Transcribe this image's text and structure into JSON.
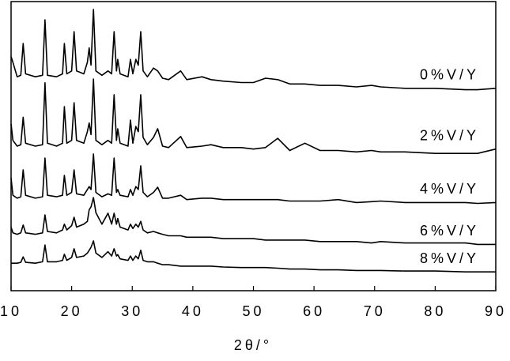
{
  "chart_data": {
    "type": "line",
    "x_label": "2θ/°",
    "x": [
      10,
      10.3,
      11,
      11.6,
      12,
      12.4,
      14,
      15.2,
      15.6,
      16,
      17.5,
      18.5,
      18.8,
      19.2,
      20,
      20.4,
      20.8,
      22,
      22.6,
      22.9,
      23.2,
      23.6,
      24,
      25,
      26,
      26.6,
      27,
      27.4,
      27.6,
      28,
      29.3,
      29.7,
      30.1,
      30.6,
      31,
      31.4,
      31.8,
      32.5,
      33.5,
      34.2,
      35,
      36,
      38,
      39,
      41.5,
      43,
      45,
      48,
      50,
      52,
      54,
      56,
      58.5,
      61,
      64,
      67,
      69.5,
      71,
      75,
      80,
      85,
      87,
      90
    ],
    "series": [
      {
        "name": "0%V/Y",
        "color": "#000000",
        "values": [
          81,
          79,
          74,
          74.5,
          85.5,
          75,
          74,
          74.5,
          93.7,
          74.5,
          74,
          75,
          85.5,
          75,
          76,
          89.6,
          76,
          75,
          79,
          84,
          78,
          97.3,
          76,
          74.5,
          76,
          75,
          89.6,
          76,
          80,
          75,
          74,
          80,
          75,
          80,
          78,
          89.6,
          76,
          74,
          77,
          76,
          73.5,
          73,
          76,
          73,
          74,
          73,
          72.5,
          72,
          72,
          73.5,
          73,
          71.5,
          71.5,
          71,
          71,
          70.5,
          71,
          70.5,
          70,
          70,
          69.5,
          69.5,
          70
        ]
      },
      {
        "name": "2%V/Y",
        "color": "#000000",
        "values": [
          57.7,
          52,
          50,
          50.5,
          60,
          51,
          50,
          50.5,
          71.9,
          51,
          50,
          51,
          63.7,
          51,
          52,
          65,
          52,
          51,
          55,
          58,
          54,
          73.2,
          52,
          50.5,
          52,
          51,
          67.8,
          52,
          56,
          51,
          50,
          59,
          51,
          56.8,
          55,
          67.8,
          53,
          50.5,
          53,
          56,
          50,
          49.5,
          53.3,
          49.5,
          50,
          50.5,
          49.5,
          49.5,
          49,
          49.5,
          52.7,
          48.5,
          51,
          48.5,
          48.5,
          48,
          48.5,
          48,
          48,
          47.5,
          47.5,
          47.5,
          49
        ]
      },
      {
        "name": "4%V/Y",
        "color": "#000000",
        "values": [
          39,
          33,
          32,
          32.5,
          41.8,
          33,
          32,
          32.5,
          45.9,
          33,
          32.5,
          33,
          39.9,
          33,
          34,
          41.8,
          33.5,
          33,
          35,
          36,
          35,
          47.3,
          34,
          32.5,
          33.5,
          33,
          45.9,
          34,
          35,
          33,
          32.5,
          35,
          33,
          36,
          35,
          43.2,
          34,
          32.5,
          34,
          35.8,
          32,
          32,
          33,
          31.5,
          32,
          32,
          31.5,
          31.5,
          31.5,
          31.5,
          31.5,
          31,
          31,
          31,
          31.5,
          30.5,
          30.8,
          31,
          30.5,
          30.5,
          30.5,
          30.2,
          30.5
        ]
      },
      {
        "name": "6%V/Y",
        "color": "#000000",
        "values": [
          22,
          20,
          19.5,
          20,
          22.7,
          20,
          19.5,
          20,
          26.2,
          20.5,
          20,
          21,
          23,
          21,
          22.5,
          25.4,
          22,
          23,
          24,
          28,
          29,
          32.2,
          27,
          23,
          26.8,
          23,
          26.8,
          23,
          25,
          22,
          21,
          23,
          21.5,
          23,
          22,
          24,
          21,
          20,
          20.5,
          20,
          19.5,
          19,
          19,
          18.5,
          18.5,
          18.5,
          18,
          18,
          18,
          17.5,
          17.5,
          17.5,
          17.5,
          17,
          17,
          17,
          16.5,
          17,
          16.5,
          16.5,
          16.5,
          16,
          16
        ]
      },
      {
        "name": "8%V/Y",
        "color": "#000000",
        "values": [
          9.5,
          9.5,
          9.5,
          9.8,
          11.7,
          9.8,
          9.5,
          10,
          15.8,
          10,
          10,
          10.5,
          12.6,
          10.5,
          11.5,
          14.5,
          11.5,
          12,
          13,
          14,
          15,
          17.2,
          13,
          11.5,
          13.5,
          12,
          14.5,
          12,
          12.5,
          11,
          10.5,
          12,
          10.5,
          12,
          11,
          14,
          10.5,
          10,
          10,
          9.5,
          9,
          9,
          8.5,
          8.5,
          8.5,
          8.5,
          8.2,
          8,
          8,
          8,
          7.8,
          7.5,
          7.5,
          7.2,
          7.2,
          7,
          7,
          7,
          6.8,
          6.8,
          6.5,
          6.5,
          6.5
        ]
      }
    ],
    "xlim": [
      10,
      90
    ],
    "xticks": [
      10,
      20,
      30,
      40,
      50,
      60,
      70,
      80,
      90
    ],
    "ylim": [
      0,
      100
    ]
  }
}
